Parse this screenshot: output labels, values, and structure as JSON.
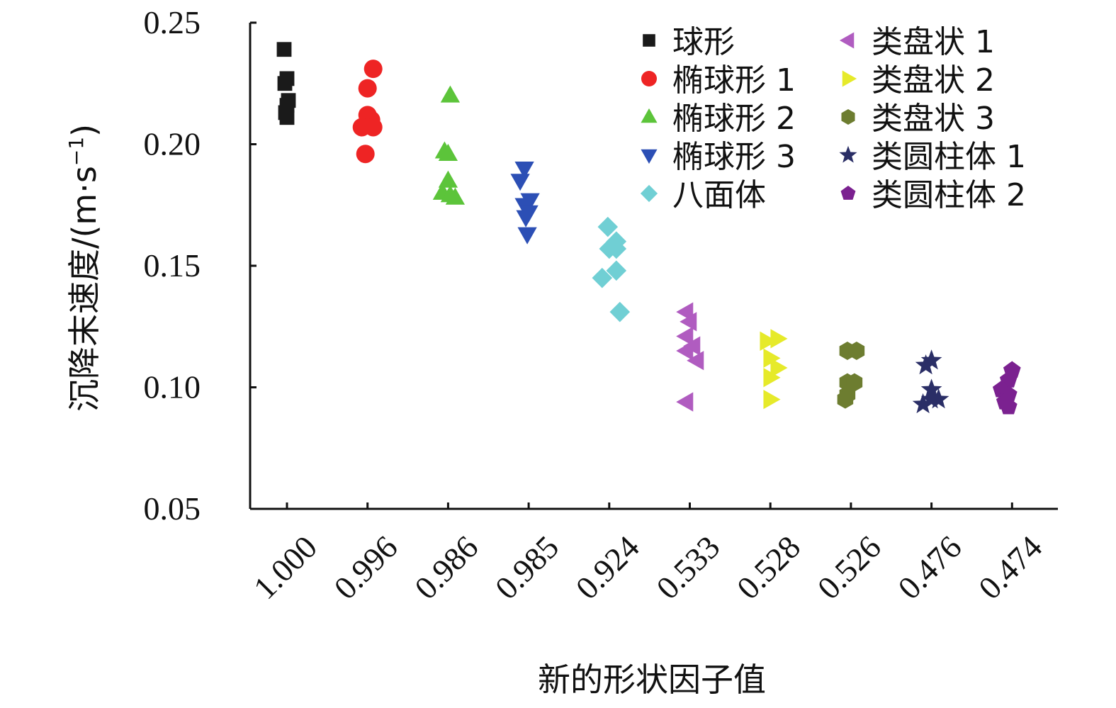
{
  "chart_data": {
    "type": "scatter",
    "xlabel": "新的形状因子值",
    "ylabel": "沉降末速度/(m·s",
    "ylabel_sup": "−1",
    "ylabel_close": ")",
    "categories": [
      "1.000",
      "0.996",
      "0.986",
      "0.985",
      "0.924",
      "0.533",
      "0.528",
      "0.526",
      "0.476",
      "0.474"
    ],
    "y_ticks": [
      "0.05",
      "0.10",
      "0.15",
      "0.20",
      "0.25"
    ],
    "ylim": [
      0.05,
      0.25
    ],
    "grid": false,
    "legend_position": "top-right",
    "series": [
      {
        "name": "球形",
        "marker": "square",
        "color": "#1a1a1a",
        "category_index": 0,
        "points": [
          [
            -0.04,
            0.239
          ],
          [
            0.0,
            0.227
          ],
          [
            -0.03,
            0.225
          ],
          [
            0.02,
            0.218
          ],
          [
            0.0,
            0.216
          ],
          [
            -0.02,
            0.213
          ],
          [
            0.0,
            0.211
          ]
        ]
      },
      {
        "name": "椭球形 1",
        "marker": "circle",
        "color": "#ee2424",
        "category_index": 1,
        "points": [
          [
            0.08,
            0.231
          ],
          [
            0.0,
            0.223
          ],
          [
            0.0,
            0.212
          ],
          [
            0.05,
            0.21
          ],
          [
            -0.08,
            0.207
          ],
          [
            0.08,
            0.207
          ],
          [
            -0.03,
            0.196
          ]
        ]
      },
      {
        "name": "椭球形 2",
        "marker": "triangle-up",
        "color": "#5cc43a",
        "category_index": 2,
        "points": [
          [
            0.03,
            0.22
          ],
          [
            -0.05,
            0.197
          ],
          [
            0.0,
            0.196
          ],
          [
            0.0,
            0.185
          ],
          [
            -0.08,
            0.18
          ],
          [
            0.03,
            0.179
          ],
          [
            0.1,
            0.178
          ]
        ]
      },
      {
        "name": "椭球形 3",
        "marker": "triangle-down",
        "color": "#2c4fb5",
        "category_index": 3,
        "points": [
          [
            -0.06,
            0.19
          ],
          [
            -0.12,
            0.185
          ],
          [
            0.02,
            0.177
          ],
          [
            -0.06,
            0.175
          ],
          [
            0.0,
            0.172
          ],
          [
            -0.04,
            0.17
          ],
          [
            -0.02,
            0.163
          ]
        ]
      },
      {
        "name": "八面体",
        "marker": "diamond",
        "color": "#70cfd4",
        "category_index": 4,
        "points": [
          [
            -0.02,
            0.166
          ],
          [
            0.1,
            0.16
          ],
          [
            0.0,
            0.157
          ],
          [
            0.1,
            0.157
          ],
          [
            0.1,
            0.148
          ],
          [
            -0.1,
            0.145
          ],
          [
            0.15,
            0.131
          ]
        ]
      },
      {
        "name": "类盘状 1",
        "marker": "triangle-left",
        "color": "#b05cc0",
        "category_index": 5,
        "points": [
          [
            -0.05,
            0.131
          ],
          [
            0.0,
            0.127
          ],
          [
            -0.05,
            0.121
          ],
          [
            0.05,
            0.117
          ],
          [
            -0.05,
            0.115
          ],
          [
            0.1,
            0.111
          ],
          [
            -0.05,
            0.094
          ]
        ]
      },
      {
        "name": "类盘状 2",
        "marker": "triangle-right",
        "color": "#e6ea2a",
        "category_index": 6,
        "points": [
          [
            -0.05,
            0.119
          ],
          [
            0.1,
            0.12
          ],
          [
            0.0,
            0.112
          ],
          [
            0.1,
            0.108
          ],
          [
            0.0,
            0.104
          ],
          [
            0.0,
            0.095
          ]
        ]
      },
      {
        "name": "类盘状 3",
        "marker": "hexagon",
        "color": "#6d7d30",
        "category_index": 7,
        "points": [
          [
            -0.05,
            0.115
          ],
          [
            0.08,
            0.115
          ],
          [
            -0.05,
            0.102
          ],
          [
            0.05,
            0.102
          ],
          [
            -0.05,
            0.097
          ],
          [
            -0.08,
            0.095
          ]
        ]
      },
      {
        "name": "类圆柱体 1",
        "marker": "star",
        "color": "#2a2e66",
        "category_index": 8,
        "points": [
          [
            0.0,
            0.111
          ],
          [
            -0.08,
            0.109
          ],
          [
            0.0,
            0.099
          ],
          [
            0.0,
            0.095
          ],
          [
            -0.12,
            0.093
          ],
          [
            0.1,
            0.095
          ]
        ]
      },
      {
        "name": "类圆柱体 2",
        "marker": "pentagon",
        "color": "#7b2190",
        "category_index": 9,
        "points": [
          [
            0.0,
            0.107
          ],
          [
            -0.05,
            0.103
          ],
          [
            -0.15,
            0.099
          ],
          [
            -0.05,
            0.097
          ],
          [
            -0.1,
            0.094
          ],
          [
            -0.05,
            0.092
          ]
        ]
      }
    ]
  }
}
